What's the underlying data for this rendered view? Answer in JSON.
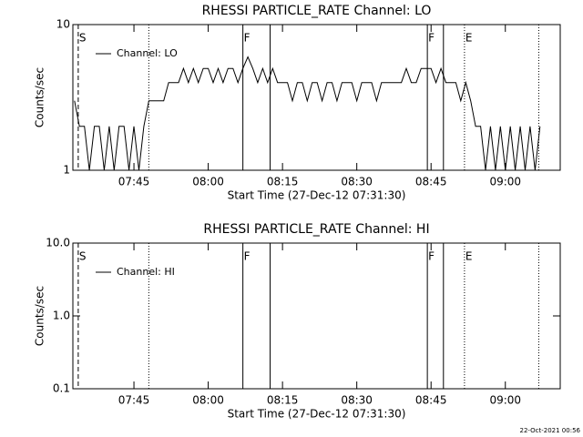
{
  "charts": [
    {
      "type": "line",
      "title": "RHESSI PARTICLE_RATE Channel: LO",
      "xlabel": "Start Time (27-Dec-12 07:31:30)",
      "ylabel": "Counts/sec",
      "log_y": true,
      "ylim": [
        1,
        10
      ],
      "yticks": [
        1,
        10
      ],
      "xlim": [
        "07:32:40",
        "09:11:05"
      ],
      "xticks": [
        "07:45",
        "08:00",
        "08:15",
        "08:30",
        "08:45",
        "09:00"
      ],
      "legend": "upper left",
      "markers": [
        {
          "time": "07:33:45",
          "style": "dashed",
          "label": "S"
        },
        {
          "time": "07:48:00",
          "style": "dotted"
        },
        {
          "time": "08:07:00",
          "style": "solid",
          "label": "F"
        },
        {
          "time": "08:12:30",
          "style": "solid"
        },
        {
          "time": "08:44:15",
          "style": "solid",
          "label": "F"
        },
        {
          "time": "08:47:30",
          "style": "solid"
        },
        {
          "time": "08:51:45",
          "style": "dotted",
          "label": "E"
        },
        {
          "time": "09:06:45",
          "style": "dotted"
        }
      ],
      "x": [
        "07:33",
        "07:34",
        "07:35",
        "07:36",
        "07:37",
        "07:38",
        "07:39",
        "07:40",
        "07:41",
        "07:42",
        "07:43",
        "07:44",
        "07:45",
        "07:46",
        "07:47",
        "07:48",
        "07:49",
        "07:50",
        "07:51",
        "07:52",
        "07:53",
        "07:54",
        "07:55",
        "07:56",
        "07:57",
        "07:58",
        "07:59",
        "08:00",
        "08:01",
        "08:02",
        "08:03",
        "08:04",
        "08:05",
        "08:06",
        "08:07",
        "08:08",
        "08:09",
        "08:10",
        "08:11",
        "08:12",
        "08:13",
        "08:14",
        "08:15",
        "08:16",
        "08:17",
        "08:18",
        "08:19",
        "08:20",
        "08:21",
        "08:22",
        "08:23",
        "08:24",
        "08:25",
        "08:26",
        "08:27",
        "08:28",
        "08:29",
        "08:30",
        "08:31",
        "08:32",
        "08:33",
        "08:34",
        "08:35",
        "08:36",
        "08:37",
        "08:38",
        "08:39",
        "08:40",
        "08:41",
        "08:42",
        "08:43",
        "08:44",
        "08:45",
        "08:46",
        "08:47",
        "08:48",
        "08:49",
        "08:50",
        "08:51",
        "08:52",
        "08:53",
        "08:54",
        "08:55",
        "08:56",
        "08:57",
        "08:58",
        "08:59",
        "09:00",
        "09:01",
        "09:02",
        "09:03",
        "09:04",
        "09:05",
        "09:06",
        "09:07"
      ],
      "series": [
        {
          "name": "Channel: LO",
          "color": "#000000",
          "values": [
            3,
            2,
            2,
            1,
            2,
            2,
            1,
            2,
            1,
            2,
            2,
            1,
            2,
            1,
            2,
            3,
            3,
            3,
            3,
            4,
            4,
            4,
            5,
            4,
            5,
            4,
            5,
            5,
            4,
            5,
            4,
            5,
            5,
            4,
            5,
            6,
            5,
            4,
            5,
            4,
            5,
            4,
            4,
            4,
            3,
            4,
            4,
            3,
            4,
            4,
            3,
            4,
            4,
            3,
            4,
            4,
            4,
            3,
            4,
            4,
            4,
            3,
            4,
            4,
            4,
            4,
            4,
            5,
            4,
            4,
            5,
            5,
            5,
            4,
            5,
            4,
            4,
            4,
            3,
            4,
            3,
            2,
            2,
            1,
            2,
            1,
            2,
            1,
            2,
            1,
            2,
            1,
            2,
            1,
            2
          ]
        }
      ]
    },
    {
      "type": "line",
      "title": "RHESSI PARTICLE_RATE Channel: HI",
      "xlabel": "Start Time (27-Dec-12 07:31:30)",
      "ylabel": "Counts/sec",
      "log_y": true,
      "ylim": [
        0.1,
        10
      ],
      "yticks": [
        0.1,
        {
          "value": 1,
          "label": "1.0"
        },
        {
          "value": 10,
          "label": "10.0"
        }
      ],
      "xlim": [
        "07:32:40",
        "09:11:05"
      ],
      "xticks": [
        "07:45",
        "08:00",
        "08:15",
        "08:30",
        "08:45",
        "09:00"
      ],
      "legend": "upper left",
      "markers": [
        {
          "time": "07:33:45",
          "style": "dashed",
          "label": "S"
        },
        {
          "time": "07:48:00",
          "style": "dotted"
        },
        {
          "time": "08:07:00",
          "style": "solid",
          "label": "F"
        },
        {
          "time": "08:12:30",
          "style": "solid"
        },
        {
          "time": "08:44:15",
          "style": "solid",
          "label": "F"
        },
        {
          "time": "08:47:30",
          "style": "solid"
        },
        {
          "time": "08:51:45",
          "style": "dotted",
          "label": "E"
        },
        {
          "time": "09:06:45",
          "style": "dotted"
        }
      ],
      "x": [],
      "series": [
        {
          "name": "Channel: HI",
          "color": "#000000",
          "values": []
        }
      ]
    }
  ],
  "footer": "22-Oct-2021 00:56"
}
